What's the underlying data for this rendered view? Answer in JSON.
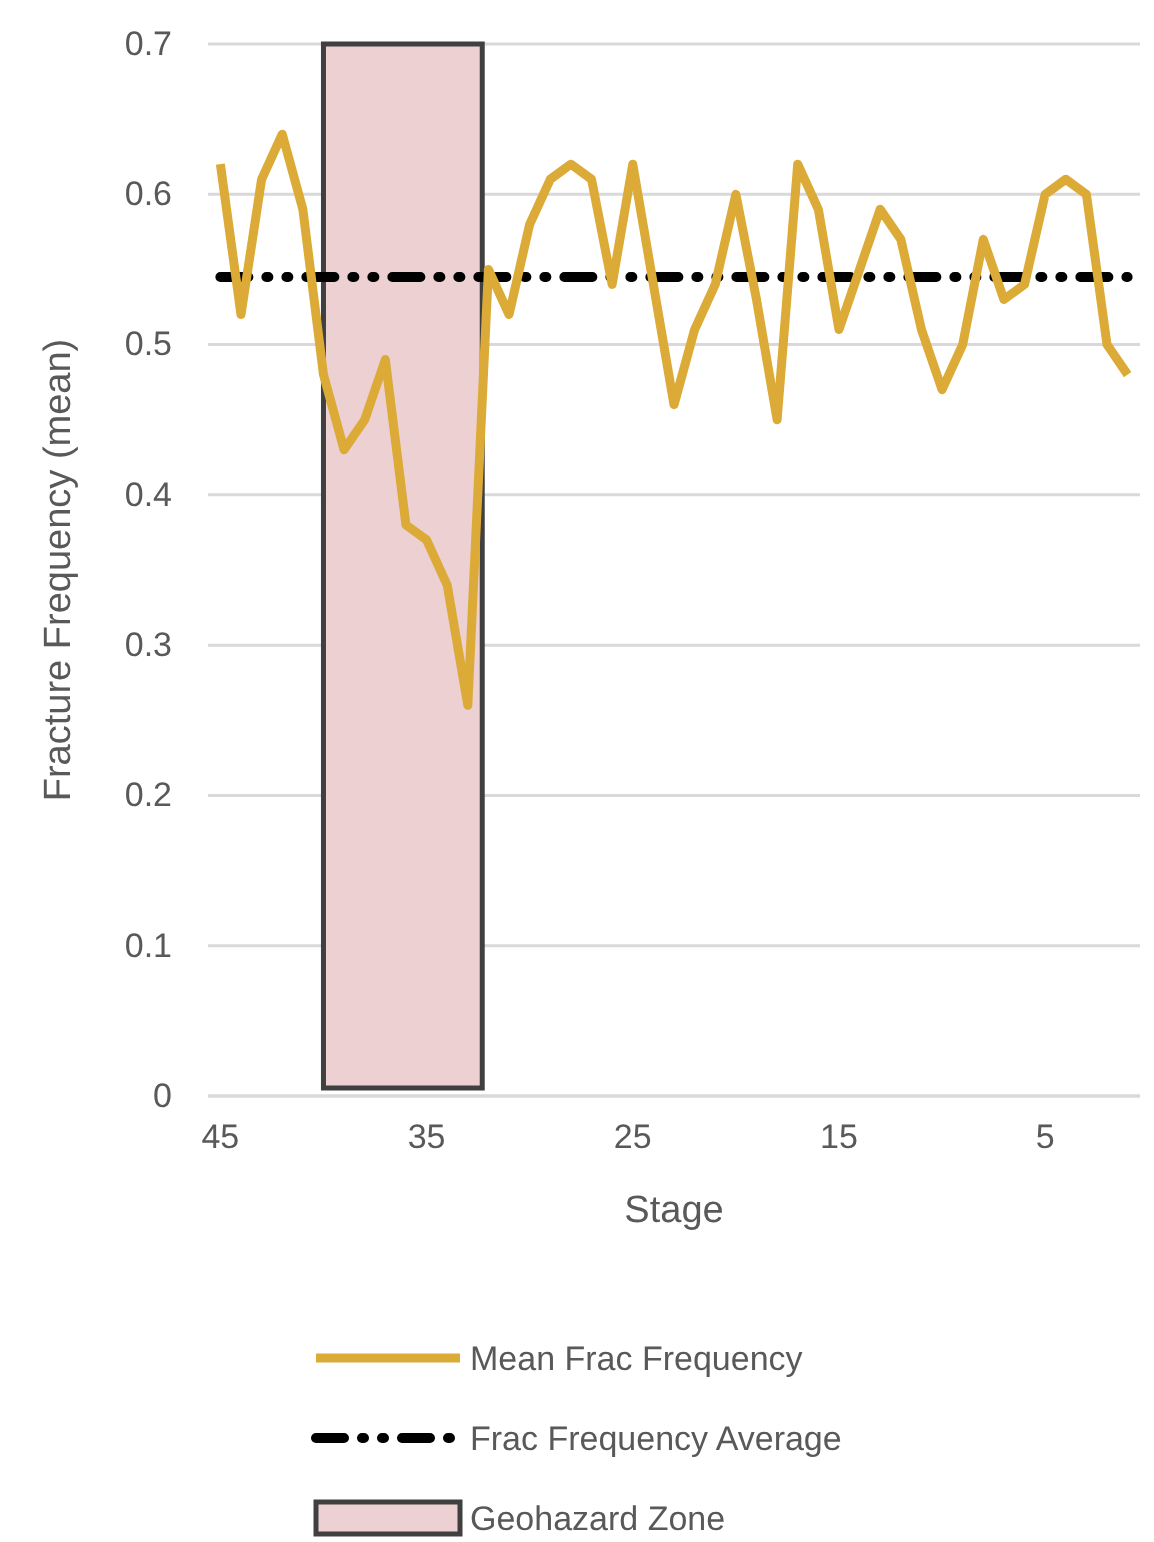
{
  "chart_data": {
    "type": "line",
    "xlabel": "Stage",
    "ylabel": "Fracture Frequency (mean)",
    "x": [
      45,
      44,
      43,
      42,
      41,
      40,
      39,
      38,
      37,
      36,
      35,
      34,
      33,
      32,
      31,
      30,
      29,
      28,
      27,
      26,
      25,
      24,
      23,
      22,
      21,
      20,
      19,
      18,
      17,
      16,
      15,
      14,
      13,
      12,
      11,
      10,
      9,
      8,
      7,
      6,
      5,
      4,
      3,
      2,
      1
    ],
    "series": [
      {
        "name": "Mean Frac Frequency",
        "color": "#dcaa37",
        "values": [
          0.62,
          0.52,
          0.61,
          0.64,
          0.59,
          0.48,
          0.43,
          0.45,
          0.49,
          0.38,
          0.37,
          0.34,
          0.26,
          0.55,
          0.52,
          0.58,
          0.61,
          0.62,
          0.61,
          0.54,
          0.62,
          0.54,
          0.46,
          0.51,
          0.54,
          0.6,
          0.53,
          0.45,
          0.62,
          0.59,
          0.51,
          0.55,
          0.59,
          0.57,
          0.51,
          0.47,
          0.5,
          0.57,
          0.53,
          0.54,
          0.6,
          0.61,
          0.6,
          0.5,
          0.48
        ]
      }
    ],
    "ref_lines": [
      {
        "axis": "y",
        "value": 0.545,
        "label": "Frac Frequency Average",
        "color": "#000000",
        "line_style": "dashed"
      }
    ],
    "bands": [
      {
        "axis": "x",
        "from": 40,
        "to": 32.3,
        "label": "Geohazard Zone",
        "color": "#ecd0d2"
      }
    ],
    "xlim": [
      45.6,
      0.4
    ],
    "xticks": [
      45,
      35,
      25,
      15,
      5
    ],
    "ylim": [
      0,
      0.7
    ],
    "yticks": [
      0,
      0.1,
      0.2,
      0.3,
      0.4,
      0.5,
      0.6,
      0.7
    ],
    "grid": "y",
    "legend": "bottom",
    "marker": "none",
    "line_style": "solid"
  }
}
